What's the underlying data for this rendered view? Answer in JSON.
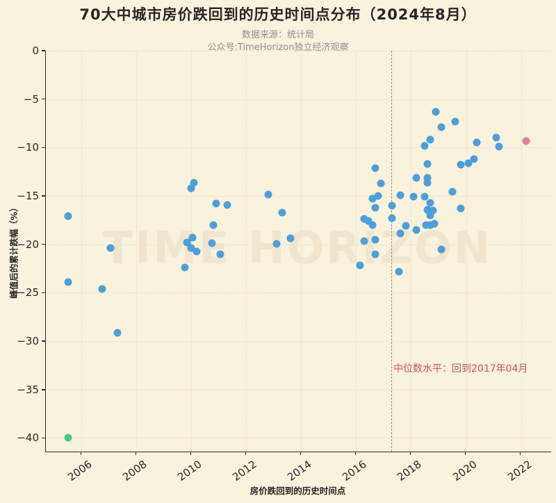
{
  "title": "70大中城市房价跌回到的历史时间点分布（2024年8月）",
  "subtitle_source": "数据来源：统计局",
  "subtitle_account": "公众号:TimeHorizon独立经济观察",
  "watermark": "TIME HORIZON",
  "annotation": {
    "text": "中位数水平：回到2017年04月",
    "color": "#cd524c"
  },
  "colors": {
    "background": "#f9f2dc",
    "axis": "#2b2b2b",
    "grid": "#e8dec2",
    "subtitle": "#8f8f8f",
    "median_line": "#8f8f8f",
    "blue_point": "#4d9fd9",
    "green_point": "#4cc78a",
    "pink_point": "#d983a2"
  },
  "chart_data": {
    "type": "scatter",
    "xlabel": "房价跌回到的历史时间点",
    "ylabel": "峰值后的累计跌幅（%）",
    "xlim": [
      2004.7,
      2023.1
    ],
    "ylim": [
      -41.4,
      0
    ],
    "xticks": [
      2006,
      2008,
      2010,
      2012,
      2014,
      2016,
      2018,
      2020,
      2022
    ],
    "xtick_labels": [
      "2006",
      "2008",
      "2010",
      "2012",
      "2014",
      "2016",
      "2018",
      "2020",
      "2022"
    ],
    "yticks": [
      0,
      -5,
      -10,
      -15,
      -20,
      -25,
      -30,
      -35,
      -40
    ],
    "ytick_labels": [
      "0",
      "−5",
      "−10",
      "−15",
      "−20",
      "−25",
      "−30",
      "−35",
      "−40"
    ],
    "grid": true,
    "median_line_x": 2017.29,
    "legend": "none",
    "series": [
      {
        "name": "cities",
        "color": "#4d9fd9",
        "points": [
          [
            2005.5,
            -17.1
          ],
          [
            2005.5,
            -23.9
          ],
          [
            2006.75,
            -24.6
          ],
          [
            2007.05,
            -20.4
          ],
          [
            2007.3,
            -29.1
          ],
          [
            2009.75,
            -22.4
          ],
          [
            2009.85,
            -19.8
          ],
          [
            2010.0,
            -14.2
          ],
          [
            2010.0,
            -20.4
          ],
          [
            2010.05,
            -19.3
          ],
          [
            2010.1,
            -13.6
          ],
          [
            2010.2,
            -20.7
          ],
          [
            2010.75,
            -19.9
          ],
          [
            2010.8,
            -18.0
          ],
          [
            2010.9,
            -15.8
          ],
          [
            2011.05,
            -21.0
          ],
          [
            2011.3,
            -15.9
          ],
          [
            2012.8,
            -14.85
          ],
          [
            2013.1,
            -19.95
          ],
          [
            2013.3,
            -16.7
          ],
          [
            2013.6,
            -19.4
          ],
          [
            2016.15,
            -22.2
          ],
          [
            2016.3,
            -17.35
          ],
          [
            2016.3,
            -19.65
          ],
          [
            2016.45,
            -17.55
          ],
          [
            2016.6,
            -15.3
          ],
          [
            2016.6,
            -18.0
          ],
          [
            2016.7,
            -12.1
          ],
          [
            2016.7,
            -16.2
          ],
          [
            2016.7,
            -19.5
          ],
          [
            2016.7,
            -21.0
          ],
          [
            2016.8,
            -15.0
          ],
          [
            2016.9,
            -13.7
          ],
          [
            2017.3,
            -16.0
          ],
          [
            2017.3,
            -17.3
          ],
          [
            2017.55,
            -22.8
          ],
          [
            2017.6,
            -14.9
          ],
          [
            2017.6,
            -18.9
          ],
          [
            2017.8,
            -18.1
          ],
          [
            2018.1,
            -15.1
          ],
          [
            2018.2,
            -13.1
          ],
          [
            2018.2,
            -18.5
          ],
          [
            2018.5,
            -9.8
          ],
          [
            2018.5,
            -15.1
          ],
          [
            2018.55,
            -18.0
          ],
          [
            2018.6,
            -11.7
          ],
          [
            2018.6,
            -13.1
          ],
          [
            2018.6,
            -13.6
          ],
          [
            2018.6,
            -16.4
          ],
          [
            2018.7,
            -9.2
          ],
          [
            2018.7,
            -15.7
          ],
          [
            2018.7,
            -17.0
          ],
          [
            2018.7,
            -18.0
          ],
          [
            2018.8,
            -16.5
          ],
          [
            2018.85,
            -17.9
          ],
          [
            2018.9,
            -6.3
          ],
          [
            2019.1,
            -7.9
          ],
          [
            2019.1,
            -20.5
          ],
          [
            2019.5,
            -14.6
          ],
          [
            2019.6,
            -7.3
          ],
          [
            2019.8,
            -11.8
          ],
          [
            2019.8,
            -16.3
          ],
          [
            2020.1,
            -11.6
          ],
          [
            2020.3,
            -11.2
          ],
          [
            2020.4,
            -9.5
          ],
          [
            2021.1,
            -9.0
          ],
          [
            2021.2,
            -9.9
          ]
        ]
      },
      {
        "name": "earliest-fallback-city",
        "color": "#4cc78a",
        "points": [
          [
            2005.5,
            -40.0
          ]
        ]
      },
      {
        "name": "latest-fallback-city",
        "color": "#d983a2",
        "points": [
          [
            2022.2,
            -9.3
          ]
        ]
      }
    ]
  }
}
